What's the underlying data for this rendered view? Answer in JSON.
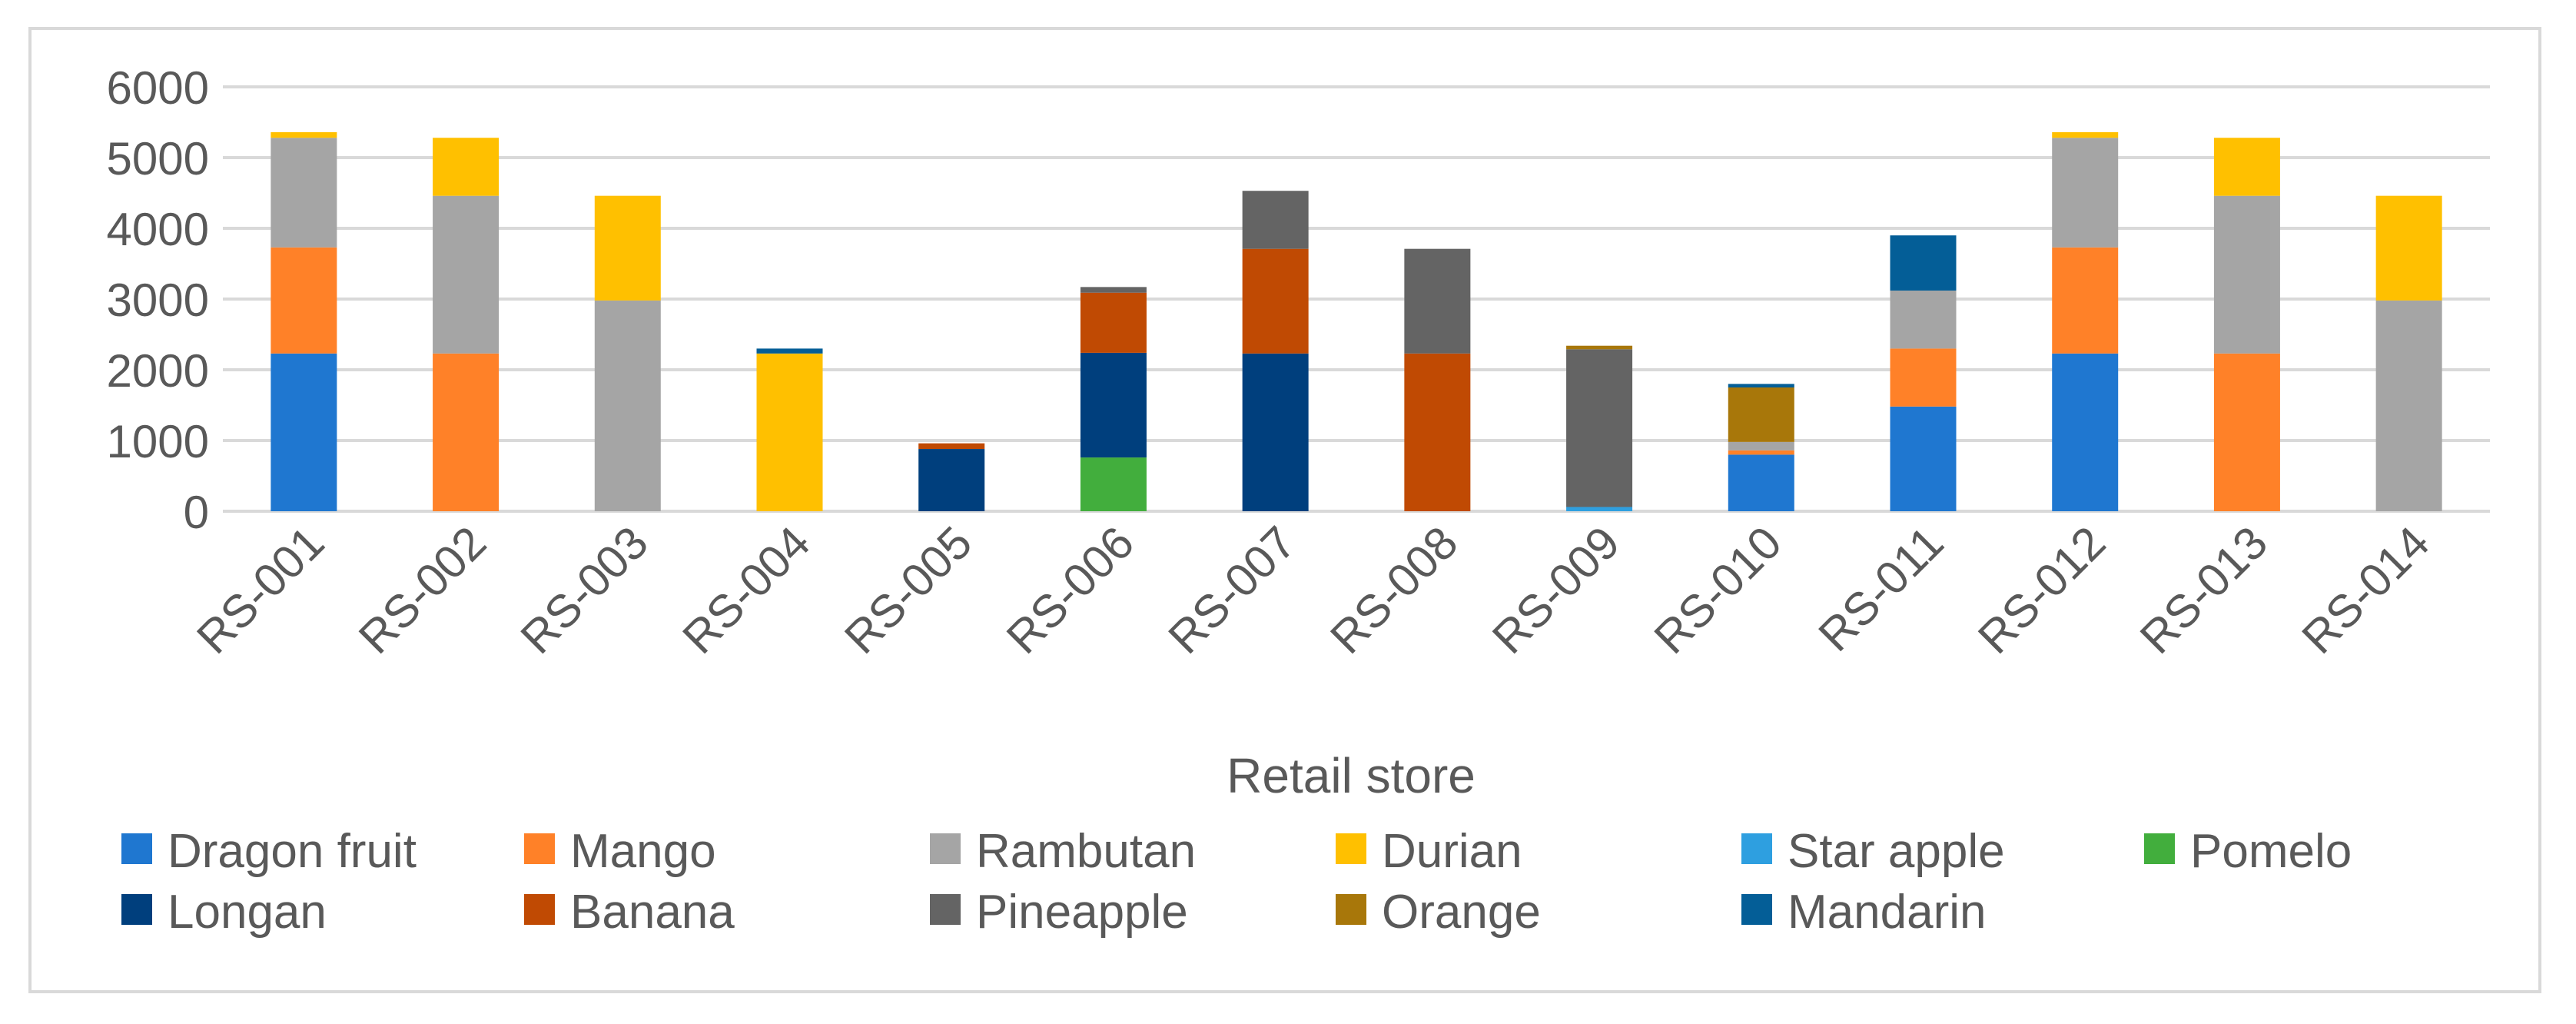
{
  "chart_data": {
    "type": "bar",
    "stacked": true,
    "title": "",
    "xlabel": "Retail store",
    "ylabel": "",
    "ylim": [
      0,
      6000
    ],
    "yticks": [
      0,
      1000,
      2000,
      3000,
      4000,
      5000,
      6000
    ],
    "grid": true,
    "legend_position": "bottom",
    "categories": [
      "RS-001",
      "RS-002",
      "RS-003",
      "RS-004",
      "RS-005",
      "RS-006",
      "RS-007",
      "RS-008",
      "RS-009",
      "RS-010",
      "RS-011",
      "RS-012",
      "RS-013",
      "RS-014"
    ],
    "series": [
      {
        "name": "Dragon fruit",
        "color": "#1f77d0",
        "values": [
          2230,
          0,
          0,
          0,
          0,
          0,
          0,
          0,
          0,
          800,
          1480,
          2230,
          0,
          0
        ]
      },
      {
        "name": "Mango",
        "color": "#ff8128",
        "values": [
          1500,
          2230,
          0,
          0,
          0,
          0,
          0,
          0,
          0,
          60,
          820,
          1500,
          2230,
          0
        ]
      },
      {
        "name": "Rambutan",
        "color": "#a5a5a5",
        "values": [
          1550,
          2230,
          2980,
          0,
          0,
          0,
          0,
          0,
          0,
          120,
          820,
          1550,
          2230,
          2980
        ]
      },
      {
        "name": "Durian",
        "color": "#ffc000",
        "values": [
          80,
          820,
          1480,
          2230,
          0,
          0,
          0,
          0,
          0,
          0,
          0,
          80,
          820,
          1480
        ]
      },
      {
        "name": "Star apple",
        "color": "#2e9fe0",
        "values": [
          0,
          0,
          0,
          0,
          0,
          0,
          0,
          0,
          60,
          0,
          0,
          0,
          0,
          0
        ]
      },
      {
        "name": "Pomelo",
        "color": "#42ae3d",
        "values": [
          0,
          0,
          0,
          0,
          0,
          760,
          0,
          0,
          0,
          0,
          0,
          0,
          0,
          0
        ]
      },
      {
        "name": "Longan",
        "color": "#003f7d",
        "values": [
          0,
          0,
          0,
          0,
          880,
          1480,
          2230,
          0,
          0,
          0,
          0,
          0,
          0,
          0
        ]
      },
      {
        "name": "Banana",
        "color": "#c04a03",
        "values": [
          0,
          0,
          0,
          0,
          80,
          850,
          1480,
          2230,
          0,
          0,
          0,
          0,
          0,
          0
        ]
      },
      {
        "name": "Pineapple",
        "color": "#646464",
        "values": [
          0,
          0,
          0,
          0,
          0,
          80,
          820,
          1480,
          2230,
          0,
          0,
          0,
          0,
          0
        ]
      },
      {
        "name": "Orange",
        "color": "#a8770a",
        "values": [
          0,
          0,
          0,
          0,
          0,
          0,
          0,
          0,
          50,
          770,
          0,
          0,
          0,
          0
        ]
      },
      {
        "name": "Mandarin",
        "color": "#045e97",
        "values": [
          0,
          0,
          0,
          70,
          0,
          0,
          0,
          0,
          0,
          50,
          780,
          0,
          0,
          0
        ]
      }
    ]
  }
}
